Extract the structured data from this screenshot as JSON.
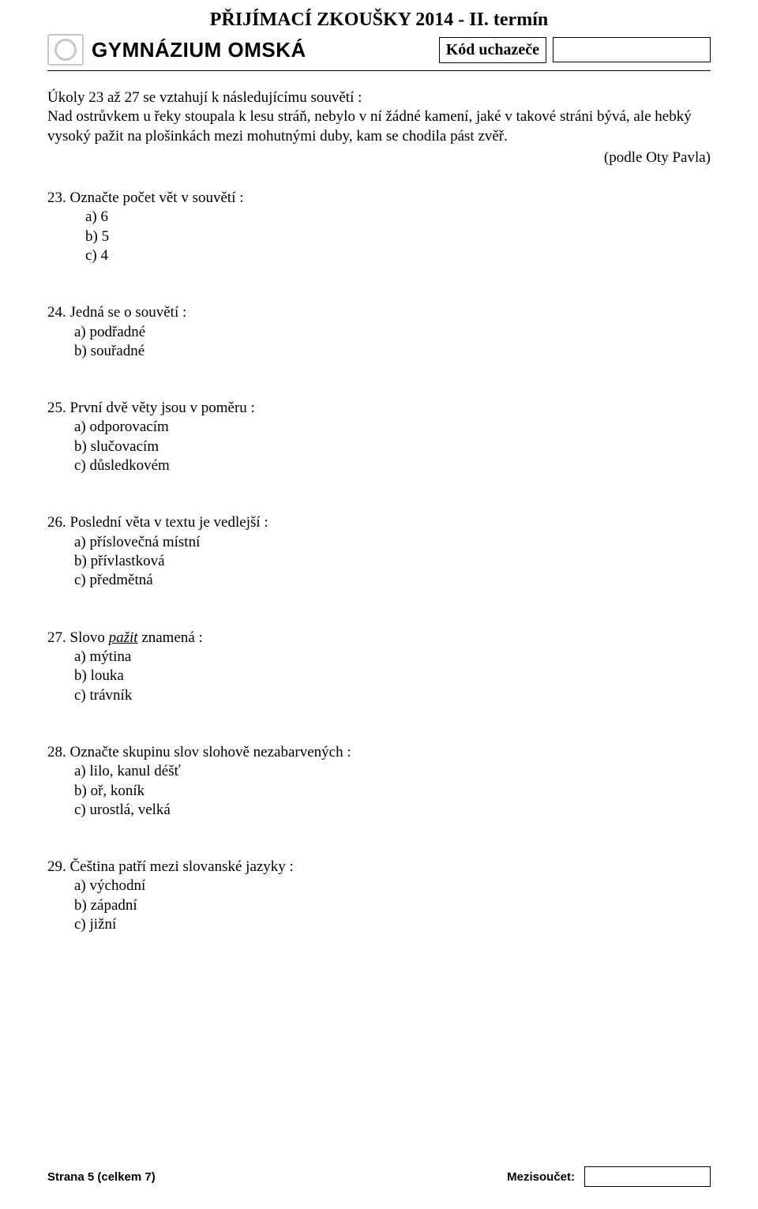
{
  "header": {
    "exam_title": "PŘIJÍMACÍ ZKOUŠKY 2014 - II. termín",
    "school_name": "GYMNÁZIUM OMSKÁ",
    "code_label": "Kód uchazeče"
  },
  "intro": {
    "lead": "Úkoly 23 až 27 se vztahují k následujícímu souvětí :",
    "passage": "Nad ostrůvkem u řeky stoupala k lesu stráň, nebylo v ní žádné kamení, jaké v takové stráni bývá, ale hebký vysoký pažit na plošinkách mezi mohutnými duby, kam se chodila pást zvěř.",
    "attribution": "(podle Oty Pavla)"
  },
  "questions": [
    {
      "number": "23.",
      "text": "Označte počet vět v souvětí :",
      "options": [
        "a)   6",
        "b)   5",
        "c)   4"
      ],
      "indented": true
    },
    {
      "number": "24.",
      "text": "Jedná se o souvětí :",
      "options": [
        "a) podřadné",
        "b) souřadné"
      ],
      "indented": false
    },
    {
      "number": "25.",
      "text": "První dvě věty jsou v poměru :",
      "options": [
        "a) odporovacím",
        "b) slučovacím",
        "c) důsledkovém"
      ],
      "indented": false
    },
    {
      "number": "26.",
      "text": "Poslední věta v textu je vedlejší :",
      "options": [
        "a) příslovečná místní",
        "b) přívlastková",
        "c) předmětná"
      ],
      "indented": false
    },
    {
      "number": "27.",
      "text_pre": "Slovo ",
      "text_italic": "pažit",
      "text_post": " znamená :",
      "options": [
        "a) mýtina",
        "b) louka",
        "c) trávník"
      ],
      "indented": false
    },
    {
      "number": "28.",
      "text": "Označte skupinu slov slohově nezabarvených :",
      "options": [
        "a) lilo, kanul déšť",
        "b) oř, koník",
        "c) urostlá, velká"
      ],
      "indented": false
    },
    {
      "number": "29.",
      "text": "Čeština patří mezi slovanské jazyky :",
      "options": [
        "a) východní",
        "b) západní",
        "c) jižní"
      ],
      "indented": false
    }
  ],
  "footer": {
    "page_info": "Strana 5 (celkem 7)",
    "subtotal_label": "Mezisoučet:"
  }
}
